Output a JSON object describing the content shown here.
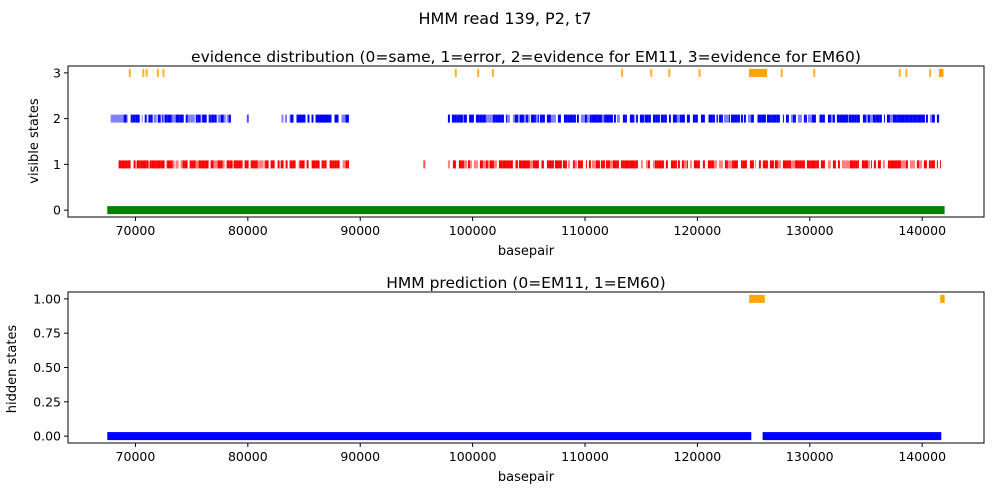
{
  "figure": {
    "suptitle": "HMM read 139, P2, t7"
  },
  "colors": {
    "state0": "#008000",
    "state1": "#ff0000",
    "state2": "#0000ff",
    "state3": "#ffa500",
    "hidden0": "#0000ff",
    "hidden1": "#ffa500"
  },
  "chart_data": [
    {
      "type": "scatter",
      "marker": "vertical-tick",
      "title": "evidence distribution (0=same, 1=error, 2=evidence for EM11, 3=evidence for EM60)",
      "xlabel": "basepair",
      "ylabel": "visible states",
      "xlim": [
        64000,
        145500
      ],
      "ylim": [
        -0.15,
        3.15
      ],
      "xticks": [
        "70000",
        "80000",
        "90000",
        "100000",
        "110000",
        "120000",
        "130000",
        "140000"
      ],
      "yticks": [
        "0",
        "1",
        "2",
        "3"
      ],
      "grid": false,
      "series": [
        {
          "state": 0,
          "color": "#008000",
          "segments": [
            [
              67500,
              142000
            ]
          ]
        },
        {
          "state": 1,
          "color": "#ff0000",
          "segments": [
            [
              68500,
              89000
            ],
            [
              97800,
              141700
            ]
          ],
          "points": [
            95700
          ]
        },
        {
          "state": 2,
          "color": "#0000ff",
          "segments": [
            [
              67800,
              78500
            ],
            [
              83000,
              89000
            ],
            [
              97800,
              141500
            ]
          ],
          "points": [
            80000,
            86500,
            111000,
            133300
          ]
        },
        {
          "state": 3,
          "color": "#ffa500",
          "points": [
            69500,
            70700,
            71000,
            72000,
            72500,
            98500,
            100500,
            101800,
            113300,
            115900,
            117500,
            120200,
            124700,
            125000,
            125300,
            125800,
            126100,
            127500,
            130400,
            138000,
            138600,
            140700,
            141700,
            141800
          ],
          "clusters": [
            [
              124600,
              126200
            ],
            [
              141500,
              141900
            ]
          ]
        }
      ]
    },
    {
      "type": "scatter",
      "marker": "vertical-tick",
      "title": "HMM prediction (0=EM11, 1=EM60)",
      "xlabel": "basepair",
      "ylabel": "hidden states",
      "xlim": [
        64000,
        145500
      ],
      "ylim": [
        -0.05,
        1.05
      ],
      "xticks": [
        "70000",
        "80000",
        "90000",
        "100000",
        "110000",
        "120000",
        "130000",
        "140000"
      ],
      "yticks": [
        "0.00",
        "0.25",
        "0.50",
        "0.75",
        "1.00"
      ],
      "grid": false,
      "series": [
        {
          "state": 0,
          "color": "#0000ff",
          "segments": [
            [
              67500,
              124800
            ],
            [
              125800,
              141700
            ]
          ]
        },
        {
          "state": 1,
          "color": "#ffa500",
          "segments": [
            [
              124600,
              126000
            ],
            [
              141600,
              142000
            ]
          ]
        }
      ]
    }
  ]
}
